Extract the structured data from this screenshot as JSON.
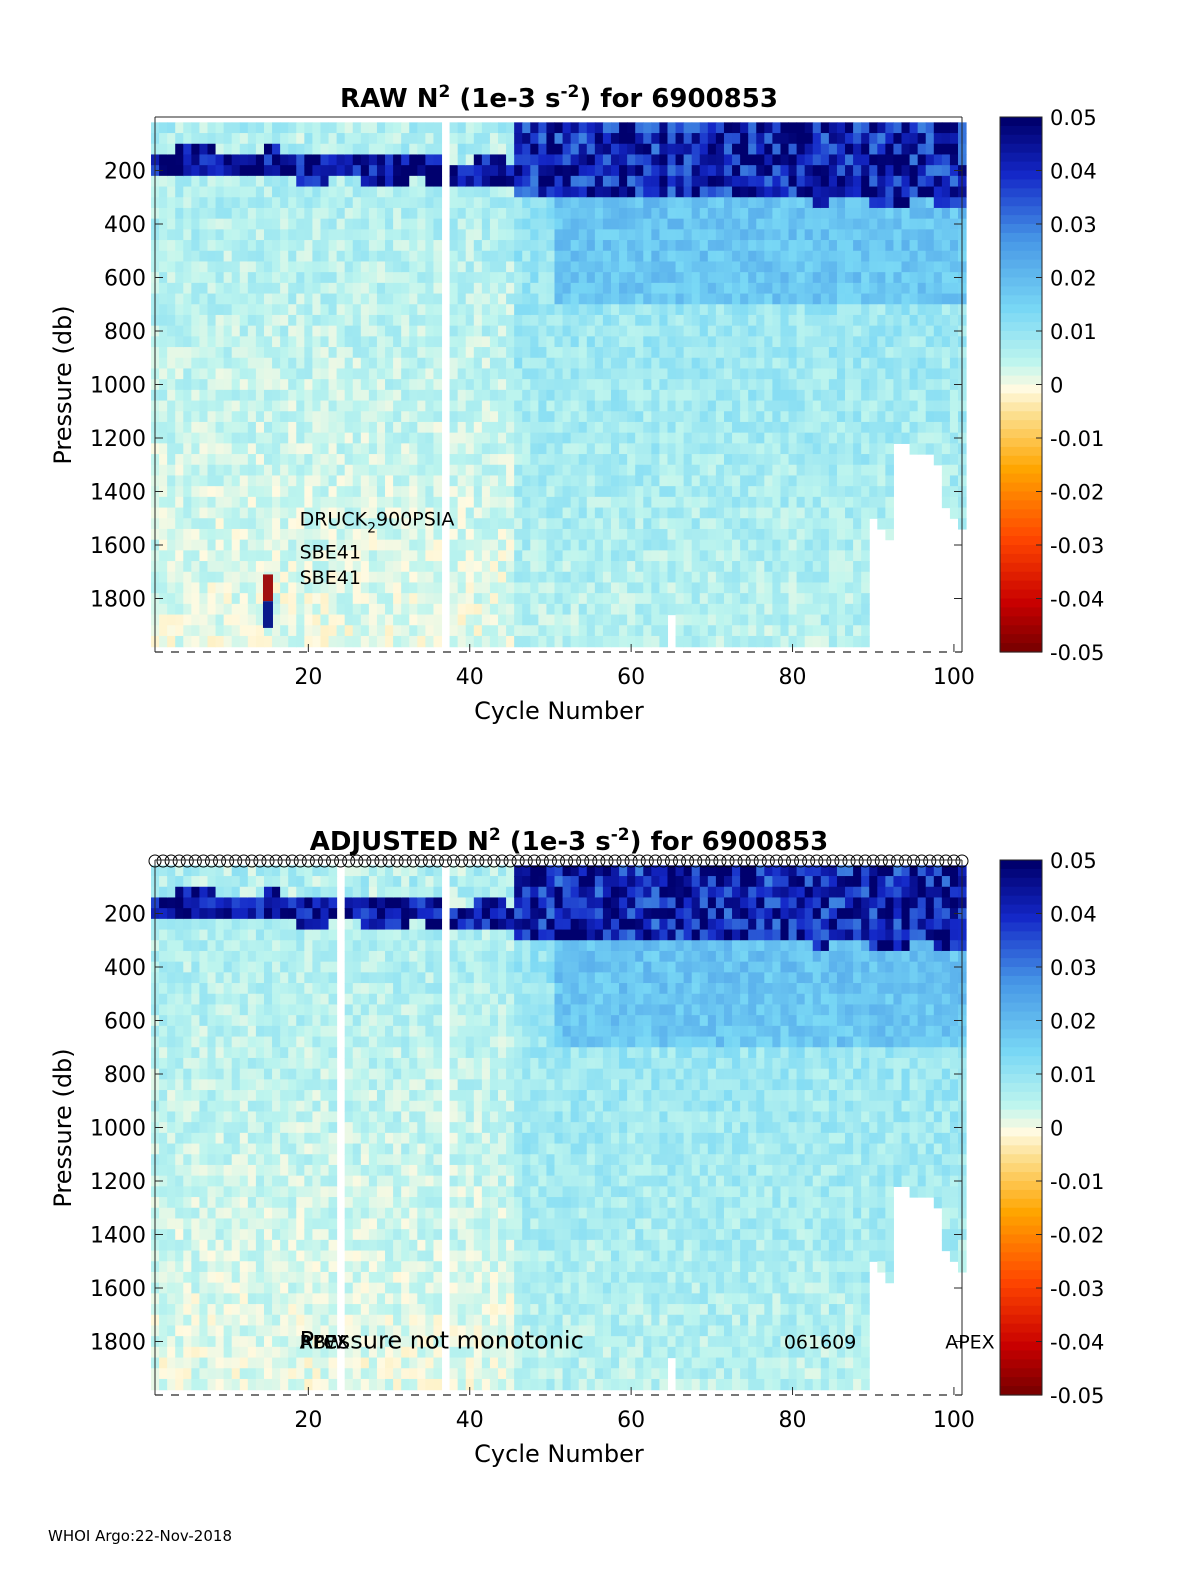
{
  "footer": "WHOI Argo:22-Nov-2018",
  "chart_data": [
    {
      "type": "heatmap",
      "title_prefix": "RAW N",
      "title_exp": "2",
      "title_mid": " (1e-3 s",
      "title_exp2": "-2",
      "title_suffix": ") for 6900853",
      "xlabel": "Cycle Number",
      "ylabel": "Pressure (db)",
      "xlim": [
        1,
        101
      ],
      "ylim": [
        2000,
        0
      ],
      "x_ticks": [
        20,
        40,
        60,
        80,
        100
      ],
      "y_ticks": [
        200,
        400,
        600,
        800,
        1000,
        1200,
        1400,
        1600,
        1800
      ],
      "colorbar": {
        "ticks": [
          "0.05",
          "0.04",
          "0.03",
          "0.02",
          "0.01",
          "0",
          "-0.01",
          "-0.02",
          "-0.03",
          "-0.04",
          "-0.05"
        ],
        "clim": [
          -0.05,
          0.05
        ]
      },
      "missing_profiles": [
        37
      ],
      "annotations": [
        {
          "text": "DRUCK",
          "sub": "2",
          "rest": "900PSIA",
          "x": 10,
          "y": 1500
        },
        {
          "text": "SBE41",
          "x": 10,
          "y": 1625
        },
        {
          "text": "SBE41",
          "x": 10,
          "y": 1720
        }
      ],
      "sensor_change_marker": {
        "x": 15,
        "y_top": 1710,
        "y_mid": 1810,
        "y_bottom": 1910,
        "colors": [
          "#a01010",
          "#0a1a8c"
        ]
      }
    },
    {
      "type": "heatmap",
      "title_prefix": "ADJUSTED N",
      "title_exp": "2",
      "title_mid": " (1e-3 s",
      "title_exp2": "-2",
      "title_suffix": ") for 6900853",
      "xlabel": "Cycle Number",
      "ylabel": "Pressure (db)",
      "xlim": [
        1,
        101
      ],
      "ylim": [
        2000,
        0
      ],
      "x_ticks": [
        20,
        40,
        60,
        80,
        100
      ],
      "y_ticks": [
        200,
        400,
        600,
        800,
        1000,
        1200,
        1400,
        1600,
        1800
      ],
      "colorbar": {
        "ticks": [
          "0.05",
          "0.04",
          "0.03",
          "0.02",
          "0.01",
          "0",
          "-0.01",
          "-0.02",
          "-0.03",
          "-0.04",
          "-0.05"
        ],
        "clim": [
          -0.05,
          0.05
        ]
      },
      "missing_profiles": [
        24,
        37
      ],
      "qc_markers_cycles": [
        1,
        101
      ],
      "annotations": [
        {
          "text": "APEX",
          "x": 10,
          "y": 1800,
          "size": "small"
        },
        {
          "text": "RBW",
          "x": 10,
          "y": 1800,
          "size": "small"
        },
        {
          "text": "Pressure not monotonic",
          "x": 10,
          "y": 1800,
          "size": "large"
        },
        {
          "text": "061609",
          "x": 70,
          "y": 1800,
          "size": "small"
        },
        {
          "text": "APEX",
          "x": 90,
          "y": 1800,
          "size": "small"
        }
      ]
    }
  ]
}
